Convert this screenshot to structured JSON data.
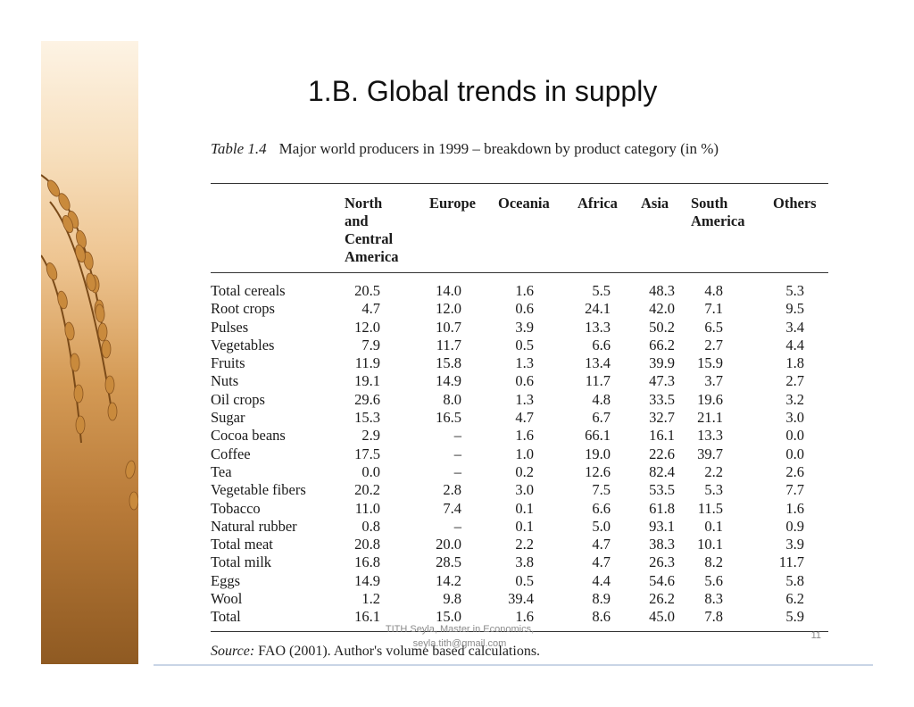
{
  "slide": {
    "title": "1.B. Global trends in supply",
    "page_number": "11",
    "footer_line1": "TITH Seyla, Master in Economics,",
    "footer_line2": "seyla.tith@gmail.com"
  },
  "image": {
    "icon": "rice-stalk-photo"
  },
  "table": {
    "caption_number": "Table 1.4",
    "caption_text": "Major world producers in 1999 – breakdown by product category (in %)",
    "columns": [
      "North\nand\nCentral\nAmerica",
      "Europe",
      "Oceania",
      "Africa",
      "Asia",
      "South\nAmerica",
      "Others"
    ],
    "rows": [
      [
        "Total cereals",
        "20.5",
        "14.0",
        "1.6",
        "5.5",
        "48.3",
        "4.8",
        "5.3"
      ],
      [
        "Root crops",
        "4.7",
        "12.0",
        "0.6",
        "24.1",
        "42.0",
        "7.1",
        "9.5"
      ],
      [
        "Pulses",
        "12.0",
        "10.7",
        "3.9",
        "13.3",
        "50.2",
        "6.5",
        "3.4"
      ],
      [
        "Vegetables",
        "7.9",
        "11.7",
        "0.5",
        "6.6",
        "66.2",
        "2.7",
        "4.4"
      ],
      [
        "Fruits",
        "11.9",
        "15.8",
        "1.3",
        "13.4",
        "39.9",
        "15.9",
        "1.8"
      ],
      [
        "Nuts",
        "19.1",
        "14.9",
        "0.6",
        "11.7",
        "47.3",
        "3.7",
        "2.7"
      ],
      [
        "Oil crops",
        "29.6",
        "8.0",
        "1.3",
        "4.8",
        "33.5",
        "19.6",
        "3.2"
      ],
      [
        "Sugar",
        "15.3",
        "16.5",
        "4.7",
        "6.7",
        "32.7",
        "21.1",
        "3.0"
      ],
      [
        "Cocoa beans",
        "2.9",
        "–",
        "1.6",
        "66.1",
        "16.1",
        "13.3",
        "0.0"
      ],
      [
        "Coffee",
        "17.5",
        "–",
        "1.0",
        "19.0",
        "22.6",
        "39.7",
        "0.0"
      ],
      [
        "Tea",
        "0.0",
        "–",
        "0.2",
        "12.6",
        "82.4",
        "2.2",
        "2.6"
      ],
      [
        "Vegetable fibers",
        "20.2",
        "2.8",
        "3.0",
        "7.5",
        "53.5",
        "5.3",
        "7.7"
      ],
      [
        "Tobacco",
        "11.0",
        "7.4",
        "0.1",
        "6.6",
        "61.8",
        "11.5",
        "1.6"
      ],
      [
        "Natural rubber",
        "0.8",
        "–",
        "0.1",
        "5.0",
        "93.1",
        "0.1",
        "0.9"
      ],
      [
        "Total meat",
        "20.8",
        "20.0",
        "2.2",
        "4.7",
        "38.3",
        "10.1",
        "3.9"
      ],
      [
        "Total milk",
        "16.8",
        "28.5",
        "3.8",
        "4.7",
        "26.3",
        "8.2",
        "11.7"
      ],
      [
        "Eggs",
        "14.9",
        "14.2",
        "0.5",
        "4.4",
        "54.6",
        "5.6",
        "5.8"
      ],
      [
        "Wool",
        "1.2",
        "9.8",
        "39.4",
        "8.9",
        "26.2",
        "8.3",
        "6.2"
      ],
      [
        "Total",
        "16.1",
        "15.0",
        "1.6",
        "8.6",
        "45.0",
        "7.8",
        "5.9"
      ]
    ],
    "source_label": "Source:",
    "source_text": "FAO (2001). Author's volume based calculations."
  }
}
